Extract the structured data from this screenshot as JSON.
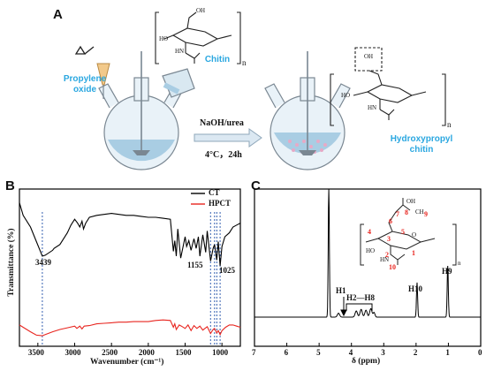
{
  "panel_a": {
    "letter": "A",
    "reagent_label": "Propylene\noxide",
    "chitin_label": "Chitin",
    "conditions_top": "NaOH/urea",
    "conditions_bottom": "4°C，24h",
    "product_label": "Hydroxypropyl\nchitin",
    "struct_labels": {
      "oh": "OH",
      "ho": "HO",
      "hn": "HN",
      "o": "O",
      "n": "n"
    }
  },
  "panel_b": {
    "letter": "B",
    "colors": {
      "ct": "#000000",
      "hpct": "#e8251f",
      "marker": "#1f4fa8"
    },
    "chart_data": {
      "type": "line",
      "xlabel": "Wavenumber (cm⁻¹)",
      "ylabel": "Transmittance (%)",
      "x_ticks": [
        "3500",
        "3000",
        "2500",
        "2000",
        "1500",
        "1000"
      ],
      "xlim": [
        3750,
        750
      ],
      "legend_position": "top-right",
      "series": [
        {
          "name": "CT",
          "x": [
            3750,
            3700,
            3600,
            3520,
            3439,
            3400,
            3300,
            3280,
            3200,
            3150,
            3100,
            3050,
            3000,
            2960,
            2930,
            2900,
            2880,
            2850,
            2800,
            2700,
            2600,
            2500,
            2400,
            2300,
            2200,
            2100,
            2000,
            1900,
            1800,
            1700,
            1660,
            1640,
            1620,
            1600,
            1560,
            1500,
            1480,
            1450,
            1420,
            1380,
            1350,
            1320,
            1300,
            1260,
            1220,
            1200,
            1155,
            1120,
            1100,
            1070,
            1050,
            1025,
            1000,
            960,
            900,
            850,
            800,
            750
          ],
          "y": [
            95,
            82,
            70,
            55,
            40,
            41,
            46,
            48,
            52,
            58,
            64,
            72,
            78,
            74,
            70,
            76,
            68,
            74,
            80,
            82,
            83,
            84,
            83,
            82,
            82,
            81,
            80,
            80,
            79,
            78,
            45,
            56,
            40,
            68,
            38,
            60,
            50,
            56,
            46,
            58,
            48,
            60,
            40,
            62,
            44,
            66,
            35,
            48,
            52,
            36,
            55,
            30,
            50,
            60,
            64,
            70,
            72,
            74
          ]
        },
        {
          "name": "HPCT",
          "x": [
            3750,
            3700,
            3600,
            3520,
            3439,
            3400,
            3300,
            3200,
            3100,
            3000,
            2970,
            2930,
            2900,
            2870,
            2800,
            2700,
            2600,
            2500,
            2400,
            2300,
            2200,
            2100,
            2000,
            1900,
            1800,
            1700,
            1660,
            1640,
            1620,
            1580,
            1550,
            1500,
            1460,
            1420,
            1380,
            1340,
            1300,
            1260,
            1200,
            1155,
            1120,
            1100,
            1070,
            1050,
            1025,
            1000,
            950,
            900,
            850,
            800,
            750
          ],
          "y": [
            22,
            18,
            10,
            4,
            3,
            5,
            10,
            14,
            17,
            20,
            16,
            20,
            15,
            20,
            21,
            24,
            25,
            26,
            27,
            27,
            28,
            28,
            28,
            30,
            31,
            30,
            18,
            24,
            14,
            22,
            20,
            16,
            22,
            12,
            21,
            16,
            20,
            13,
            19,
            7,
            14,
            16,
            8,
            12,
            5,
            12,
            18,
            22,
            22,
            20,
            18
          ]
        }
      ],
      "annotations": [
        "3439",
        "1155",
        "1025"
      ],
      "marker_lines_x": [
        3439,
        1155,
        1100,
        1070,
        1025
      ]
    }
  },
  "panel_c": {
    "letter": "C",
    "colors": {
      "spectrum": "#000000",
      "numbers": "#e8251f"
    },
    "chart_data": {
      "type": "line",
      "xlabel": "δ (ppm)",
      "x_ticks": [
        "7",
        "6",
        "5",
        "4",
        "3",
        "2",
        "1",
        "0"
      ],
      "xlim": [
        7,
        0
      ],
      "peaks": [
        {
          "label": "H1",
          "ppm": 4.4
        },
        {
          "label": "H2—H8",
          "ppm_range": [
            3.9,
            3.3
          ]
        },
        {
          "label": "H10",
          "ppm": 1.97
        },
        {
          "label": "H9",
          "ppm": 1.02
        }
      ],
      "peak_heights": {
        "solvent_4.7": 1.0,
        "H1": 0.03,
        "H2_H8": 0.06,
        "H10": 0.27,
        "H9": 0.4
      },
      "structure_numbers": [
        "1",
        "2",
        "3",
        "4",
        "5",
        "6",
        "7",
        "8",
        "9",
        "10"
      ],
      "structure_labels": {
        "oh": "OH",
        "ch3": "CH",
        "ho": "HO",
        "hn": "HN",
        "o": "O",
        "n": "n"
      }
    }
  }
}
